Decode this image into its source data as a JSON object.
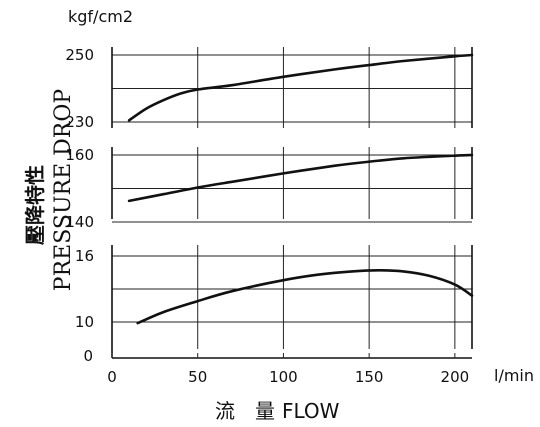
{
  "chart_data": {
    "type": "line",
    "unit_label": "kgf/cm2",
    "ylabel_ja": "壓降特性",
    "ylabel_en": "PRESSURE DROP",
    "xlabel_ja": "流　量",
    "xlabel_en": "FLOW",
    "x_unit": "l/min",
    "xlim": [
      0,
      210
    ],
    "x_ticks": [
      0,
      50,
      100,
      150,
      200
    ],
    "x_tick_labels": [
      "0",
      "50",
      "100",
      "150",
      "200"
    ],
    "y_zero_label": "0",
    "panels": [
      {
        "ylim": [
          230,
          250
        ],
        "y_tick_labels": [
          "250",
          "230"
        ],
        "x": [
          10,
          20,
          30,
          40,
          50,
          70,
          100,
          130,
          150,
          170,
          200,
          210
        ],
        "y": [
          230.5,
          234.0,
          236.5,
          238.5,
          239.7,
          241.0,
          243.5,
          245.7,
          247.0,
          248.2,
          249.6,
          250.0
        ]
      },
      {
        "ylim": [
          140,
          160
        ],
        "y_tick_labels": [
          "160",
          "140"
        ],
        "x": [
          10,
          30,
          50,
          70,
          100,
          130,
          150,
          170,
          200,
          210
        ],
        "y": [
          146.3,
          148.3,
          150.3,
          152.0,
          154.5,
          156.8,
          158.0,
          159.0,
          159.8,
          160.0
        ]
      },
      {
        "ylim": [
          10,
          16
        ],
        "y_tick_labels": [
          "16",
          "10"
        ],
        "x": [
          15,
          30,
          50,
          70,
          100,
          120,
          140,
          155,
          170,
          185,
          200,
          210
        ],
        "y": [
          9.9,
          10.9,
          11.9,
          12.8,
          13.8,
          14.3,
          14.6,
          14.7,
          14.6,
          14.2,
          13.4,
          12.4
        ]
      }
    ]
  }
}
